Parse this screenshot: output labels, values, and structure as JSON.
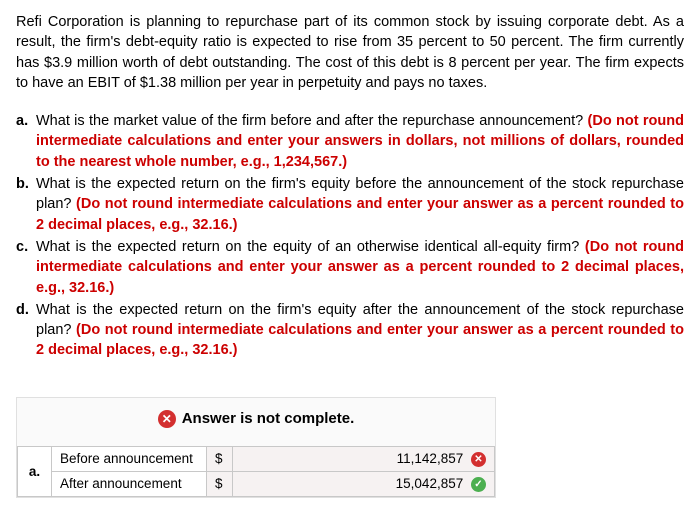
{
  "intro": "Refi Corporation is planning to repurchase part of its common stock by issuing corporate debt. As a result, the firm's debt-equity ratio is expected to rise from 35 percent to 50 percent. The firm currently has $3.9 million worth of debt outstanding. The cost of this debt is 8 percent per year. The firm expects to have an EBIT of $1.38 million per year in perpetuity and pays no taxes.",
  "questions": [
    {
      "letter": "a.",
      "black": "What is the market value of the firm before and after the repurchase announcement? ",
      "red": "(Do not round intermediate calculations and enter your answers in dollars, not millions of dollars, rounded to the nearest whole number, e.g., 1,234,567.)"
    },
    {
      "letter": "b.",
      "black": "What is the expected return on the firm's equity before the announcement of the stock repurchase plan? ",
      "red": "(Do not round intermediate calculations and enter your answer as a percent rounded to 2 decimal places, e.g., 32.16.)"
    },
    {
      "letter": "c.",
      "black": "What is the expected return on the equity of an otherwise identical all-equity firm? ",
      "red": "(Do not round intermediate calculations and enter your answer as a percent rounded to 2 decimal places, e.g., 32.16.)"
    },
    {
      "letter": "d.",
      "black": "What is the expected return on the firm's equity after the announcement of the stock repurchase plan? ",
      "red": "(Do not round intermediate calculations and enter your answer as a percent rounded to 2 decimal places, e.g., 32.16.)"
    }
  ],
  "answer_header": "Answer is not complete.",
  "table": {
    "rowlabel": "a.",
    "rows": [
      {
        "desc": "Before announcement",
        "currency": "$",
        "value": "11,142,857",
        "status": "wrong"
      },
      {
        "desc": "After announcement",
        "currency": "$",
        "value": "15,042,857",
        "status": "correct"
      }
    ]
  },
  "icons": {
    "x": "✕",
    "check": "✓"
  }
}
